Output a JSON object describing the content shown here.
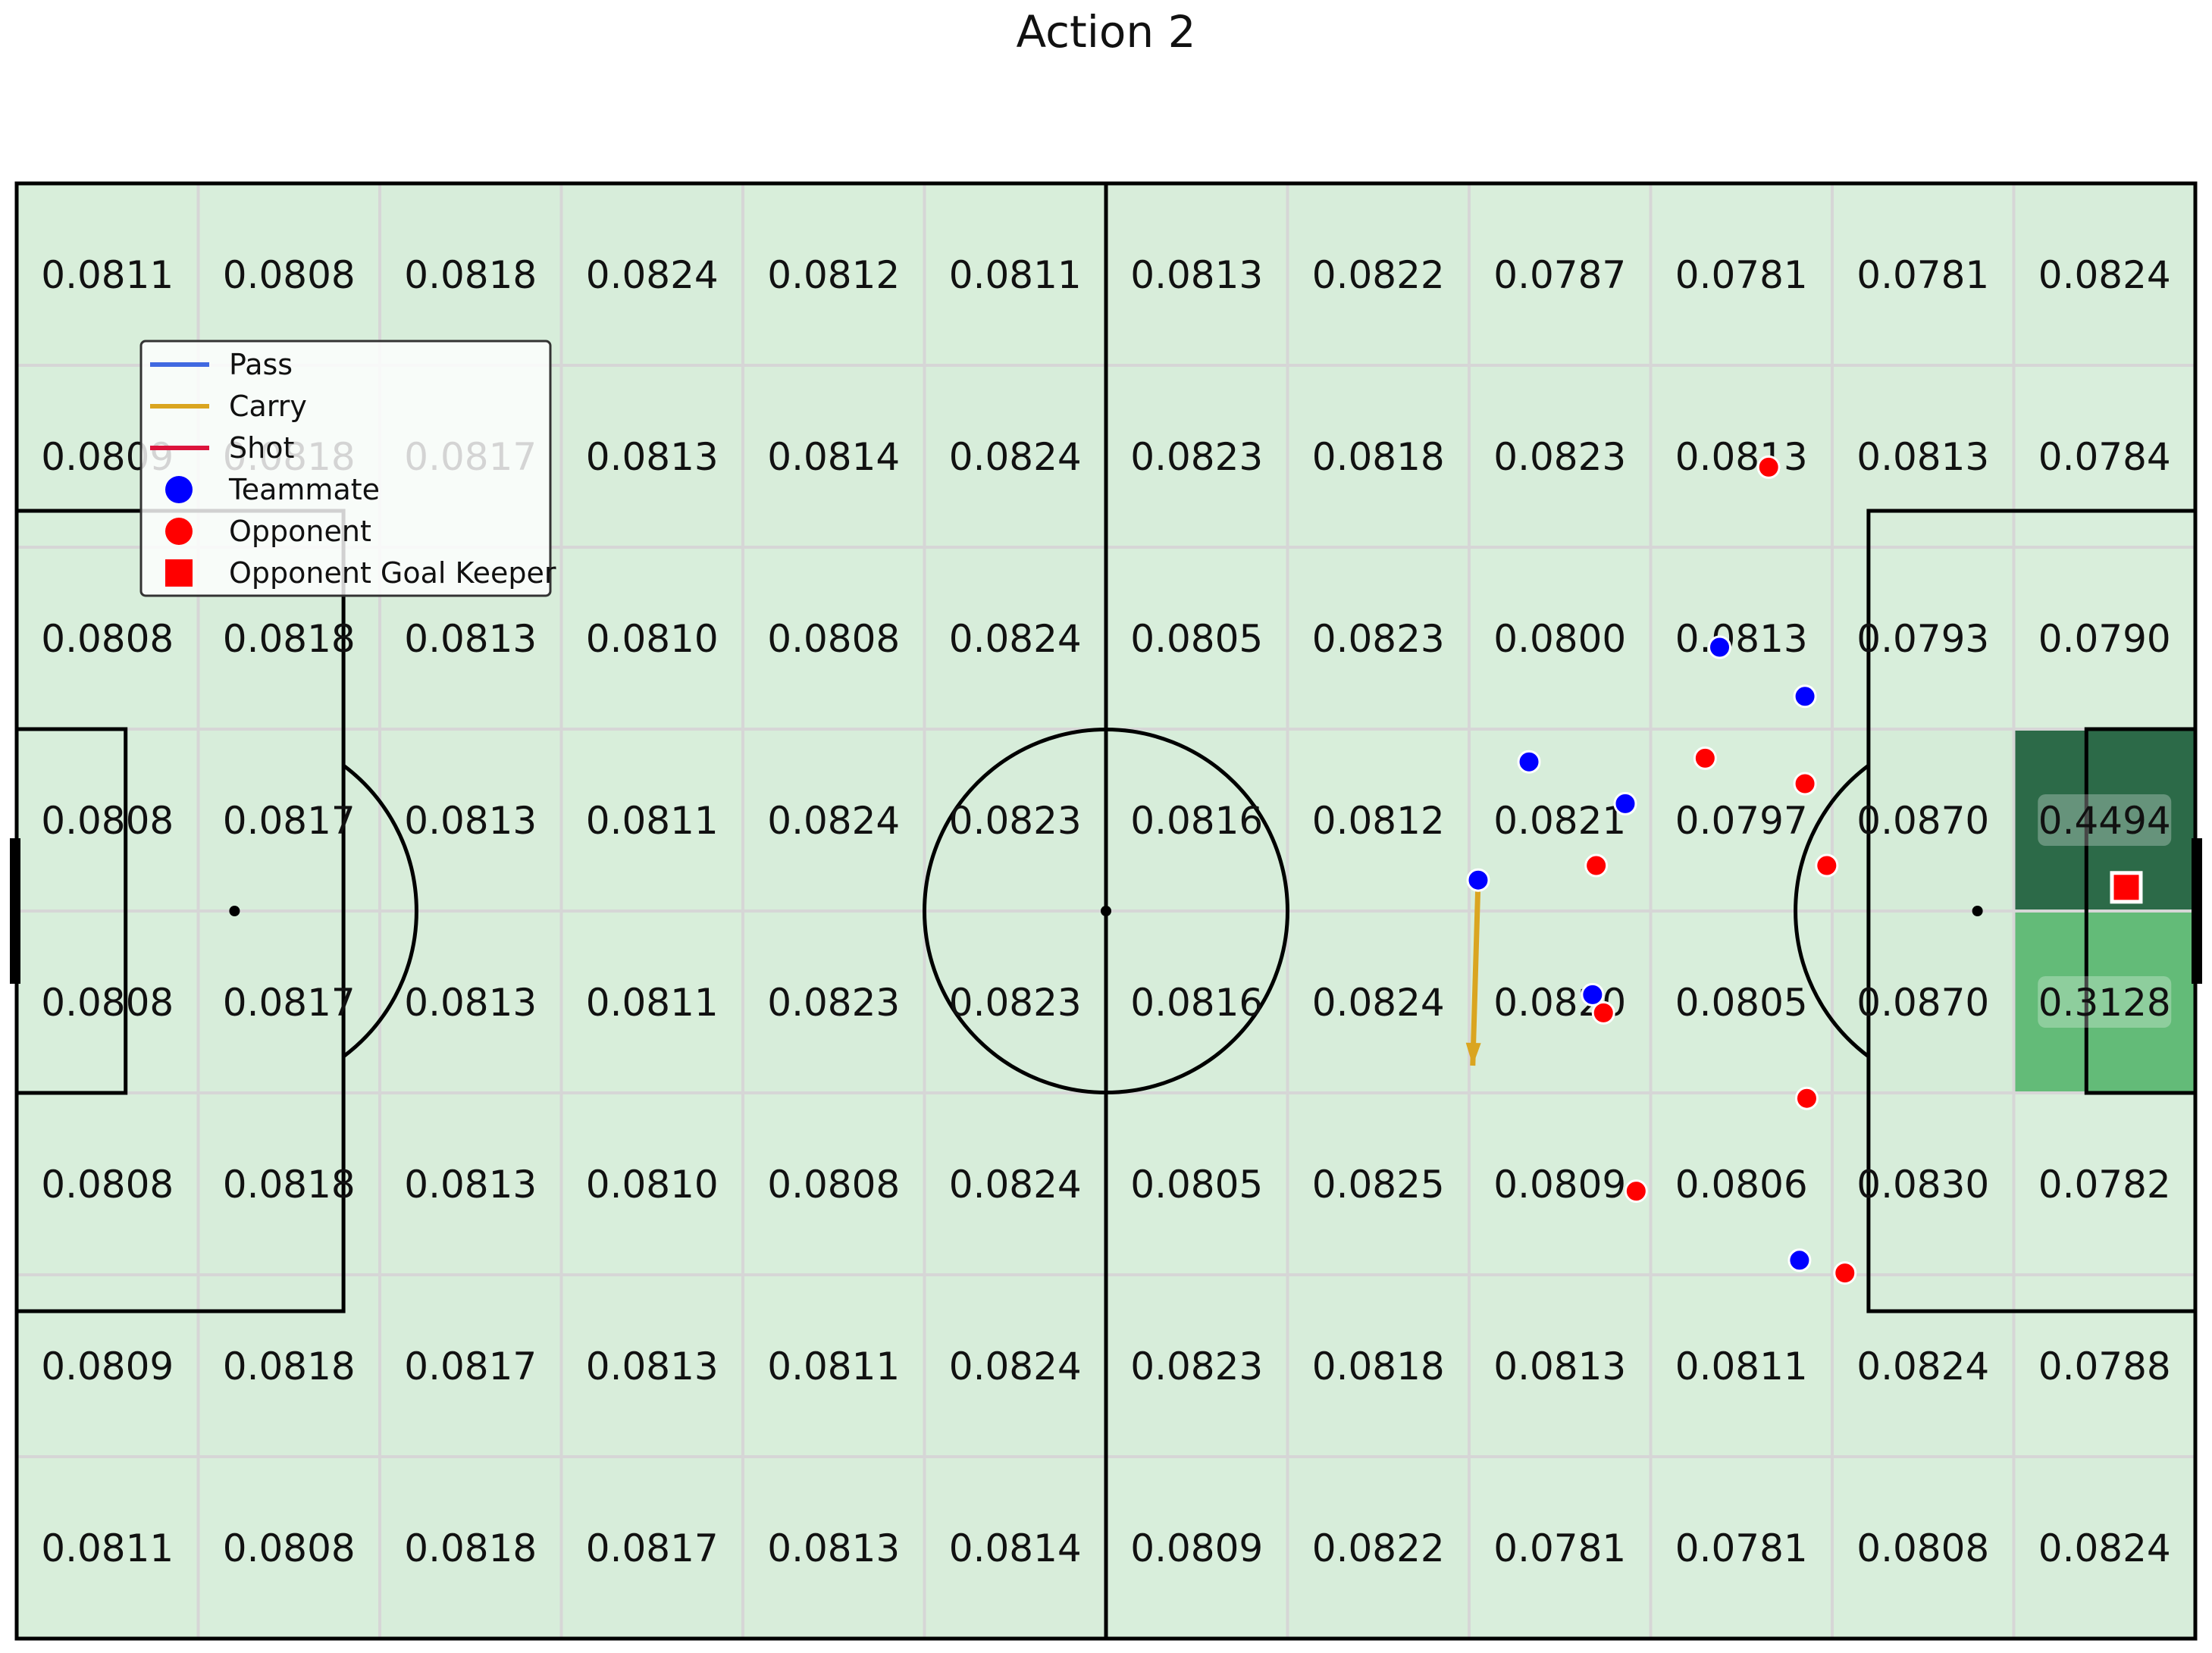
{
  "title": "Action 2",
  "legend": {
    "items": [
      {
        "label": "Pass",
        "kind": "line",
        "color": "#4169e1"
      },
      {
        "label": "Carry",
        "kind": "line",
        "color": "#daa520"
      },
      {
        "label": "Shot",
        "kind": "line",
        "color": "#dc143c"
      },
      {
        "label": "Teammate",
        "kind": "circle",
        "color": "#0000ff"
      },
      {
        "label": "Opponent",
        "kind": "circle",
        "color": "#ff0000"
      },
      {
        "label": "Opponent Goal Keeper",
        "kind": "square",
        "color": "#ff0000"
      }
    ]
  },
  "chart_data": {
    "type": "heatmap",
    "title": "Action 2",
    "pitch": {
      "length": 120,
      "width": 80
    },
    "grid": {
      "cols": 12,
      "rows": 8
    },
    "cell_values": [
      [
        "0.0811",
        "0.0808",
        "0.0818",
        "0.0824",
        "0.0812",
        "0.0811",
        "0.0813",
        "0.0822",
        "0.0787",
        "0.0781",
        "0.0781",
        "0.0824"
      ],
      [
        "0.0809",
        "0.0818",
        "0.0817",
        "0.0813",
        "0.0814",
        "0.0824",
        "0.0823",
        "0.0818",
        "0.0823",
        "0.0813",
        "0.0813",
        "0.0784"
      ],
      [
        "0.0808",
        "0.0818",
        "0.0813",
        "0.0810",
        "0.0808",
        "0.0824",
        "0.0805",
        "0.0823",
        "0.0800",
        "0.0813",
        "0.0793",
        "0.0790"
      ],
      [
        "0.0808",
        "0.0817",
        "0.0813",
        "0.0811",
        "0.0824",
        "0.0823",
        "0.0816",
        "0.0812",
        "0.0821",
        "0.0797",
        "0.0870",
        "0.4494"
      ],
      [
        "0.0808",
        "0.0817",
        "0.0813",
        "0.0811",
        "0.0823",
        "0.0823",
        "0.0816",
        "0.0824",
        "0.0820",
        "0.0805",
        "0.0870",
        "0.3128"
      ],
      [
        "0.0808",
        "0.0818",
        "0.0813",
        "0.0810",
        "0.0808",
        "0.0824",
        "0.0805",
        "0.0825",
        "0.0809",
        "0.0806",
        "0.0830",
        "0.0782"
      ],
      [
        "0.0809",
        "0.0818",
        "0.0817",
        "0.0813",
        "0.0811",
        "0.0824",
        "0.0823",
        "0.0818",
        "0.0813",
        "0.0811",
        "0.0824",
        "0.0788"
      ],
      [
        "0.0811",
        "0.0808",
        "0.0818",
        "0.0817",
        "0.0813",
        "0.0814",
        "0.0809",
        "0.0822",
        "0.0781",
        "0.0781",
        "0.0808",
        "0.0824"
      ]
    ],
    "color_scale": {
      "low": "#f7fbf5",
      "mid": "#62bb77",
      "high": "#2c6a48",
      "max": 0.4494
    },
    "teammates": [
      {
        "x": 83.3,
        "y": 31.8
      },
      {
        "x": 88.6,
        "y": 34.1
      },
      {
        "x": 93.8,
        "y": 25.5
      },
      {
        "x": 98.5,
        "y": 28.2
      },
      {
        "x": 80.5,
        "y": 38.3
      },
      {
        "x": 86.8,
        "y": 44.6
      },
      {
        "x": 98.2,
        "y": 59.2
      }
    ],
    "opponents": [
      {
        "x": 96.5,
        "y": 15.6
      },
      {
        "x": 93.0,
        "y": 31.6
      },
      {
        "x": 98.5,
        "y": 33.0
      },
      {
        "x": 87.0,
        "y": 37.5
      },
      {
        "x": 99.7,
        "y": 37.5
      },
      {
        "x": 87.4,
        "y": 45.6
      },
      {
        "x": 98.6,
        "y": 50.3
      },
      {
        "x": 89.2,
        "y": 55.4
      },
      {
        "x": 100.7,
        "y": 59.9
      }
    ],
    "goalkeeper": {
      "x": 116.2,
      "y": 38.7
    },
    "events": [
      {
        "type": "Carry",
        "start": {
          "x": 80.5,
          "y": 38.3
        },
        "end": {
          "x": 80.2,
          "y": 48.5
        }
      }
    ]
  }
}
